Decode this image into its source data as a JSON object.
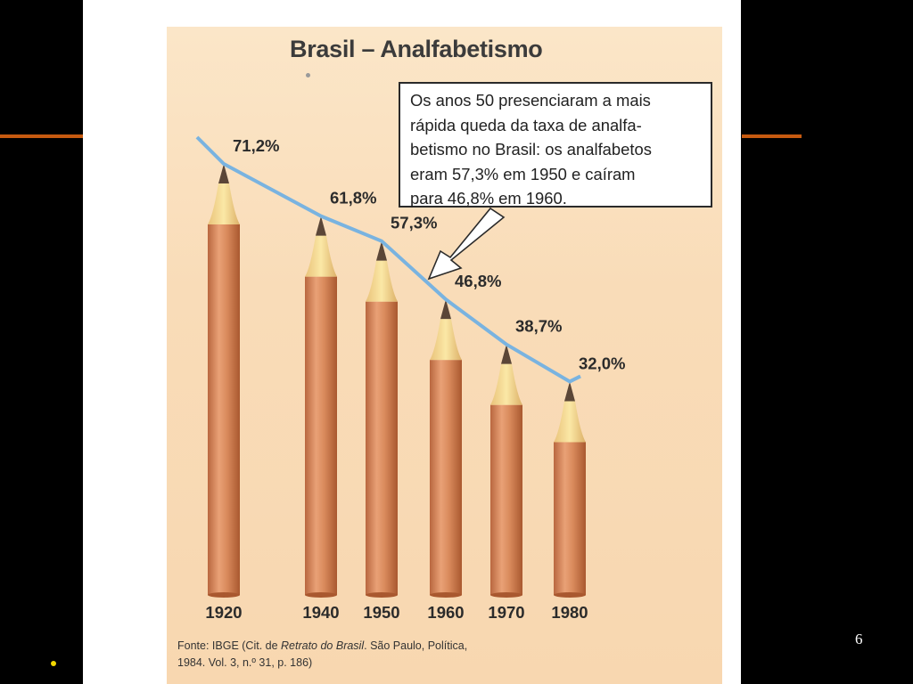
{
  "chart_data": {
    "type": "bar",
    "title": "Brasil – Analfabetismo",
    "categories": [
      "1920",
      "1940",
      "1950",
      "1960",
      "1970",
      "1980"
    ],
    "values": [
      71.2,
      61.8,
      57.3,
      46.8,
      38.7,
      32.0
    ],
    "value_labels": [
      "71,2%",
      "61,8%",
      "57,3%",
      "46,8%",
      "38,7%",
      "32,0%"
    ],
    "xlabel": "",
    "ylabel": "",
    "grid": false,
    "legend": "none",
    "line_overlay_color": "#79b3e0",
    "bar_color": "#d98a5c"
  },
  "callout": {
    "lines": [
      "Os anos 50 presenciaram a mais",
      "rápida queda da taxa de analfa-",
      "betismo no Brasil: os analfabetos",
      "eram 57,3% em 1950 e caíram",
      "para 46,8% em 1960."
    ]
  },
  "source": {
    "prefix": "Fonte: IBGE (Cit. de ",
    "title": "Retrato do Brasil",
    "rest": ". São Paulo, Política,",
    "line2": "1984. Vol. 3, n.º 31, p. 186)"
  },
  "slide": {
    "page_number": "6"
  }
}
